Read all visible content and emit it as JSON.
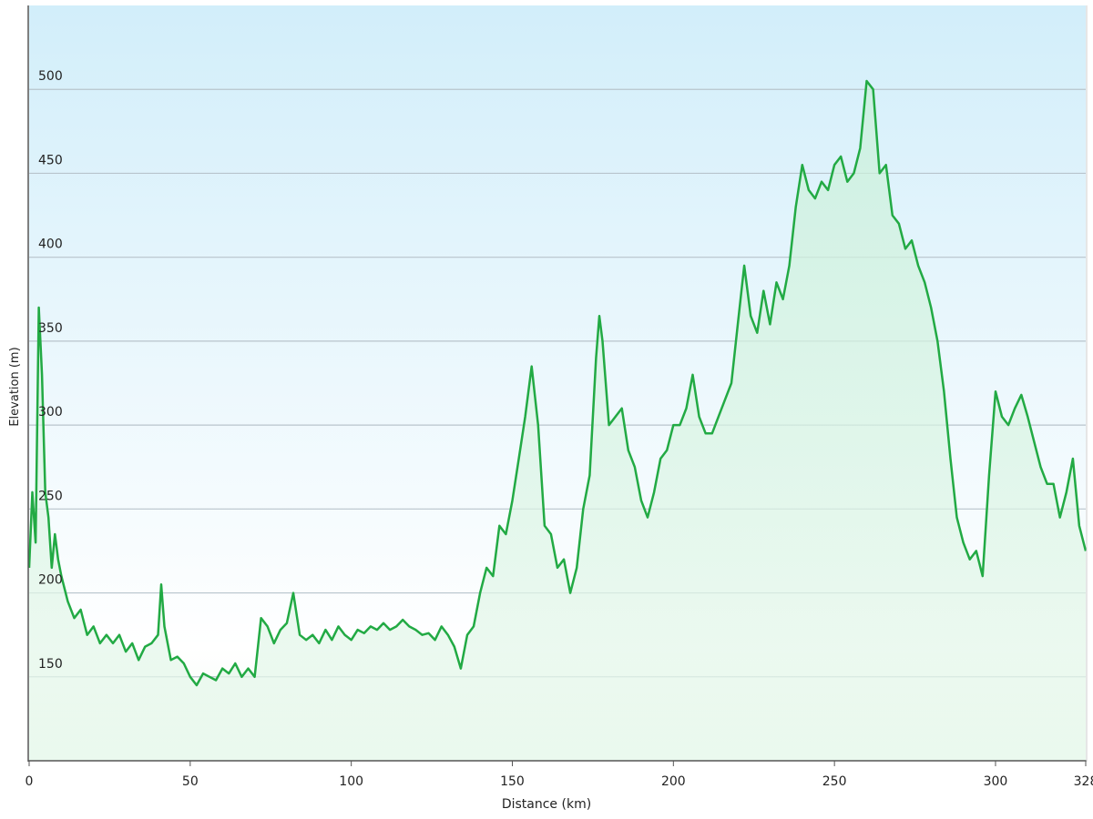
{
  "chart_data": {
    "type": "area",
    "xlabel": "Distance  (km)",
    "ylabel": "Elevation (m)",
    "xlim": [
      0,
      328
    ],
    "ylim": [
      100,
      550
    ],
    "xticks": [
      0,
      50,
      100,
      150,
      200,
      250,
      300,
      328
    ],
    "yticks": [
      150,
      200,
      250,
      300,
      350,
      400,
      450,
      500
    ],
    "grid": true,
    "series": [
      {
        "color": "#22aa44",
        "x": [
          0,
          1,
          2,
          3,
          4,
          5,
          6,
          7,
          8,
          9,
          10,
          12,
          14,
          16,
          18,
          20,
          22,
          24,
          26,
          28,
          30,
          32,
          34,
          36,
          38,
          40,
          41,
          42,
          44,
          46,
          48,
          50,
          52,
          54,
          56,
          58,
          60,
          62,
          64,
          66,
          68,
          70,
          72,
          74,
          76,
          78,
          80,
          82,
          84,
          86,
          88,
          90,
          92,
          94,
          96,
          98,
          100,
          102,
          104,
          106,
          108,
          110,
          112,
          114,
          116,
          118,
          120,
          122,
          124,
          126,
          128,
          130,
          132,
          134,
          136,
          138,
          140,
          142,
          144,
          146,
          148,
          150,
          152,
          154,
          156,
          158,
          160,
          162,
          164,
          166,
          168,
          170,
          172,
          174,
          176,
          177,
          178,
          180,
          182,
          184,
          186,
          188,
          190,
          192,
          194,
          196,
          198,
          200,
          202,
          204,
          206,
          208,
          210,
          212,
          214,
          216,
          218,
          220,
          222,
          224,
          226,
          228,
          230,
          232,
          234,
          236,
          238,
          240,
          242,
          244,
          246,
          248,
          250,
          252,
          254,
          256,
          258,
          260,
          262,
          264,
          266,
          268,
          270,
          272,
          274,
          276,
          278,
          280,
          282,
          284,
          286,
          288,
          290,
          292,
          294,
          296,
          298,
          300,
          302,
          304,
          306,
          308,
          310,
          312,
          314,
          316,
          318,
          320,
          322,
          324,
          326,
          328
        ],
        "values": [
          215,
          260,
          230,
          370,
          330,
          260,
          245,
          215,
          235,
          220,
          210,
          195,
          185,
          190,
          175,
          180,
          170,
          175,
          170,
          175,
          165,
          170,
          160,
          168,
          170,
          175,
          205,
          180,
          160,
          162,
          158,
          150,
          145,
          152,
          150,
          148,
          155,
          152,
          158,
          150,
          155,
          150,
          185,
          180,
          170,
          178,
          182,
          200,
          175,
          172,
          175,
          170,
          178,
          172,
          180,
          175,
          172,
          178,
          176,
          180,
          178,
          182,
          178,
          180,
          184,
          180,
          178,
          175,
          176,
          172,
          180,
          175,
          168,
          155,
          175,
          180,
          200,
          215,
          210,
          240,
          235,
          255,
          280,
          305,
          335,
          300,
          240,
          235,
          215,
          220,
          200,
          215,
          250,
          270,
          340,
          365,
          350,
          300,
          305,
          310,
          285,
          275,
          255,
          245,
          260,
          280,
          285,
          300,
          300,
          310,
          330,
          305,
          295,
          295,
          305,
          315,
          325,
          360,
          395,
          365,
          355,
          380,
          360,
          385,
          375,
          395,
          430,
          455,
          440,
          435,
          445,
          440,
          455,
          460,
          445,
          450,
          465,
          505,
          500,
          450,
          455,
          425,
          420,
          405,
          410,
          395,
          385,
          370,
          350,
          320,
          280,
          245,
          230,
          220,
          225,
          210,
          270,
          320,
          305,
          300,
          310,
          318,
          305,
          290,
          275,
          265,
          265,
          245,
          260,
          280,
          240,
          225
        ]
      }
    ]
  }
}
